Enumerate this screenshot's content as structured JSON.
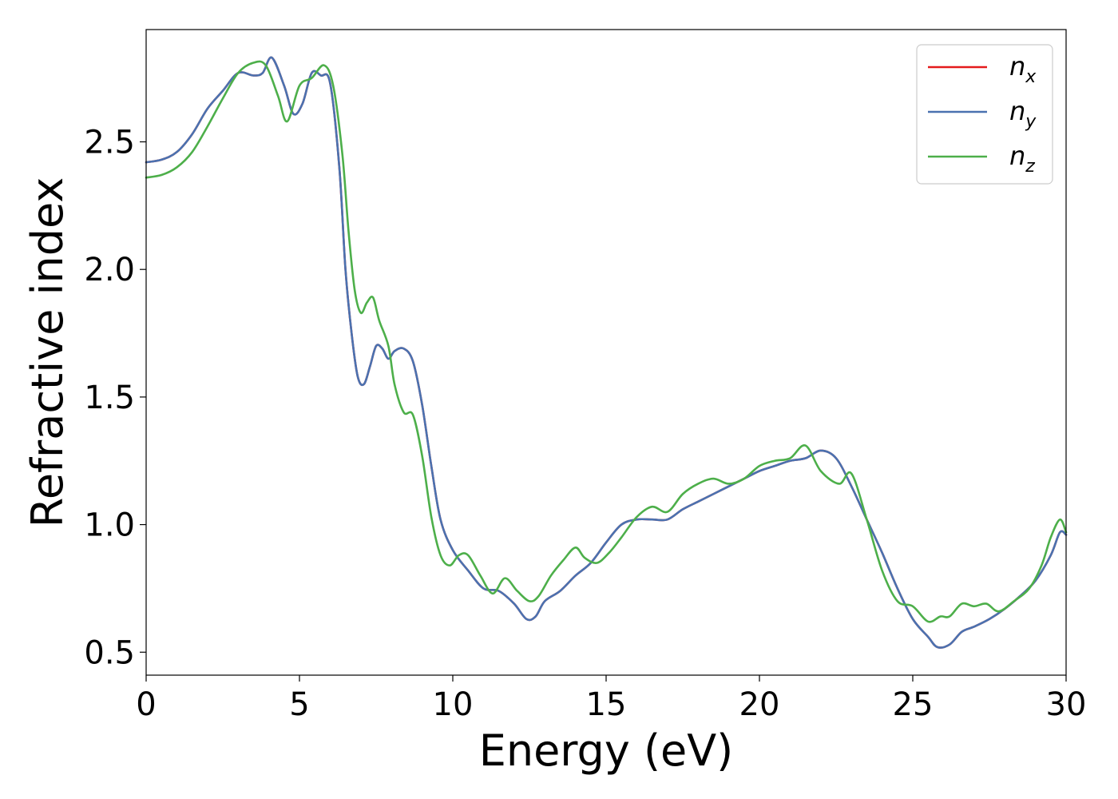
{
  "chart_data": {
    "type": "line",
    "title": "",
    "xlabel": "Energy (eV)",
    "ylabel": "Refractive index",
    "xlim": [
      0,
      30
    ],
    "ylim": [
      0.41,
      2.94
    ],
    "x_ticks": [
      "0",
      "5",
      "10",
      "15",
      "20",
      "25",
      "30"
    ],
    "y_ticks": [
      "0.5",
      "1.0",
      "1.5",
      "2.0",
      "2.5"
    ],
    "grid": false,
    "legend_position": "top-right",
    "colors": {
      "n_x": "#e41a1c",
      "n_y": "#4a72b0",
      "n_z": "#4daf4a"
    },
    "series": [
      {
        "name": "n_x",
        "legend_base": "n",
        "legend_sub": "x",
        "x": [
          0,
          0.5,
          1,
          1.5,
          2,
          2.5,
          3,
          3.5,
          3.8,
          4.1,
          4.5,
          4.8,
          5.1,
          5.4,
          5.7,
          6.0,
          6.3,
          6.5,
          6.7,
          6.9,
          7.1,
          7.3,
          7.5,
          7.7,
          7.9,
          8.1,
          8.4,
          8.7,
          9.0,
          9.3,
          9.6,
          10.0,
          10.5,
          11.0,
          11.5,
          12.0,
          12.4,
          12.7,
          13.0,
          13.5,
          14.0,
          14.5,
          15.0,
          15.5,
          16.0,
          16.5,
          17.0,
          17.5,
          18.0,
          18.5,
          19.0,
          19.5,
          20.0,
          20.5,
          21.0,
          21.5,
          22.0,
          22.5,
          23.0,
          23.5,
          24.0,
          24.5,
          25.0,
          25.5,
          25.8,
          26.2,
          26.6,
          27.0,
          27.5,
          28.0,
          28.5,
          29.0,
          29.5,
          29.8,
          30.0
        ],
        "y": [
          2.42,
          2.43,
          2.46,
          2.53,
          2.63,
          2.7,
          2.77,
          2.76,
          2.77,
          2.83,
          2.72,
          2.61,
          2.65,
          2.77,
          2.76,
          2.73,
          2.4,
          2.0,
          1.75,
          1.58,
          1.55,
          1.62,
          1.7,
          1.69,
          1.65,
          1.68,
          1.69,
          1.64,
          1.47,
          1.23,
          1.02,
          0.9,
          0.82,
          0.75,
          0.74,
          0.69,
          0.63,
          0.64,
          0.7,
          0.74,
          0.8,
          0.85,
          0.93,
          1.0,
          1.02,
          1.02,
          1.02,
          1.06,
          1.09,
          1.12,
          1.15,
          1.18,
          1.21,
          1.23,
          1.25,
          1.26,
          1.29,
          1.26,
          1.15,
          1.02,
          0.89,
          0.75,
          0.63,
          0.56,
          0.52,
          0.53,
          0.58,
          0.6,
          0.63,
          0.67,
          0.72,
          0.78,
          0.88,
          0.97,
          0.96
        ]
      },
      {
        "name": "n_y",
        "legend_base": "n",
        "legend_sub": "y",
        "x": [
          0,
          0.5,
          1,
          1.5,
          2,
          2.5,
          3,
          3.5,
          3.8,
          4.1,
          4.5,
          4.8,
          5.1,
          5.4,
          5.7,
          6.0,
          6.3,
          6.5,
          6.7,
          6.9,
          7.1,
          7.3,
          7.5,
          7.7,
          7.9,
          8.1,
          8.4,
          8.7,
          9.0,
          9.3,
          9.6,
          10.0,
          10.5,
          11.0,
          11.5,
          12.0,
          12.4,
          12.7,
          13.0,
          13.5,
          14.0,
          14.5,
          15.0,
          15.5,
          16.0,
          16.5,
          17.0,
          17.5,
          18.0,
          18.5,
          19.0,
          19.5,
          20.0,
          20.5,
          21.0,
          21.5,
          22.0,
          22.5,
          23.0,
          23.5,
          24.0,
          24.5,
          25.0,
          25.5,
          25.8,
          26.2,
          26.6,
          27.0,
          27.5,
          28.0,
          28.5,
          29.0,
          29.5,
          29.8,
          30.0
        ],
        "y": [
          2.42,
          2.43,
          2.46,
          2.53,
          2.63,
          2.7,
          2.77,
          2.76,
          2.77,
          2.83,
          2.72,
          2.61,
          2.65,
          2.77,
          2.76,
          2.73,
          2.4,
          2.0,
          1.75,
          1.58,
          1.55,
          1.62,
          1.7,
          1.69,
          1.65,
          1.68,
          1.69,
          1.64,
          1.47,
          1.23,
          1.02,
          0.9,
          0.82,
          0.75,
          0.74,
          0.69,
          0.63,
          0.64,
          0.7,
          0.74,
          0.8,
          0.85,
          0.93,
          1.0,
          1.02,
          1.02,
          1.02,
          1.06,
          1.09,
          1.12,
          1.15,
          1.18,
          1.21,
          1.23,
          1.25,
          1.26,
          1.29,
          1.26,
          1.15,
          1.02,
          0.89,
          0.75,
          0.63,
          0.56,
          0.52,
          0.53,
          0.58,
          0.6,
          0.63,
          0.67,
          0.72,
          0.78,
          0.88,
          0.97,
          0.96
        ]
      },
      {
        "name": "n_z",
        "legend_base": "n",
        "legend_sub": "z",
        "x": [
          0,
          0.5,
          1,
          1.5,
          2,
          2.5,
          3,
          3.5,
          3.9,
          4.3,
          4.6,
          5.0,
          5.4,
          5.8,
          6.1,
          6.4,
          6.6,
          6.8,
          7.0,
          7.2,
          7.4,
          7.6,
          7.9,
          8.1,
          8.4,
          8.7,
          9.0,
          9.3,
          9.6,
          9.9,
          10.2,
          10.5,
          10.9,
          11.3,
          11.7,
          12.1,
          12.5,
          12.8,
          13.2,
          13.6,
          14.0,
          14.3,
          14.7,
          15.1,
          15.5,
          16.0,
          16.5,
          17.0,
          17.5,
          18.0,
          18.5,
          19.0,
          19.5,
          20.0,
          20.5,
          21.0,
          21.5,
          22.0,
          22.6,
          23.0,
          23.5,
          24.0,
          24.5,
          25.0,
          25.5,
          25.9,
          26.2,
          26.6,
          27.0,
          27.4,
          27.8,
          28.3,
          28.8,
          29.2,
          29.5,
          29.8,
          30.0
        ],
        "y": [
          2.36,
          2.37,
          2.4,
          2.46,
          2.56,
          2.67,
          2.77,
          2.81,
          2.8,
          2.68,
          2.58,
          2.72,
          2.75,
          2.8,
          2.72,
          2.45,
          2.15,
          1.92,
          1.83,
          1.87,
          1.89,
          1.8,
          1.7,
          1.55,
          1.44,
          1.43,
          1.27,
          1.03,
          0.88,
          0.84,
          0.88,
          0.88,
          0.8,
          0.73,
          0.79,
          0.74,
          0.7,
          0.72,
          0.8,
          0.86,
          0.91,
          0.87,
          0.85,
          0.89,
          0.95,
          1.03,
          1.07,
          1.05,
          1.12,
          1.16,
          1.18,
          1.16,
          1.18,
          1.23,
          1.25,
          1.26,
          1.31,
          1.21,
          1.16,
          1.2,
          1.02,
          0.82,
          0.7,
          0.68,
          0.62,
          0.64,
          0.64,
          0.69,
          0.68,
          0.69,
          0.66,
          0.7,
          0.75,
          0.84,
          0.95,
          1.02,
          0.97
        ]
      }
    ]
  }
}
